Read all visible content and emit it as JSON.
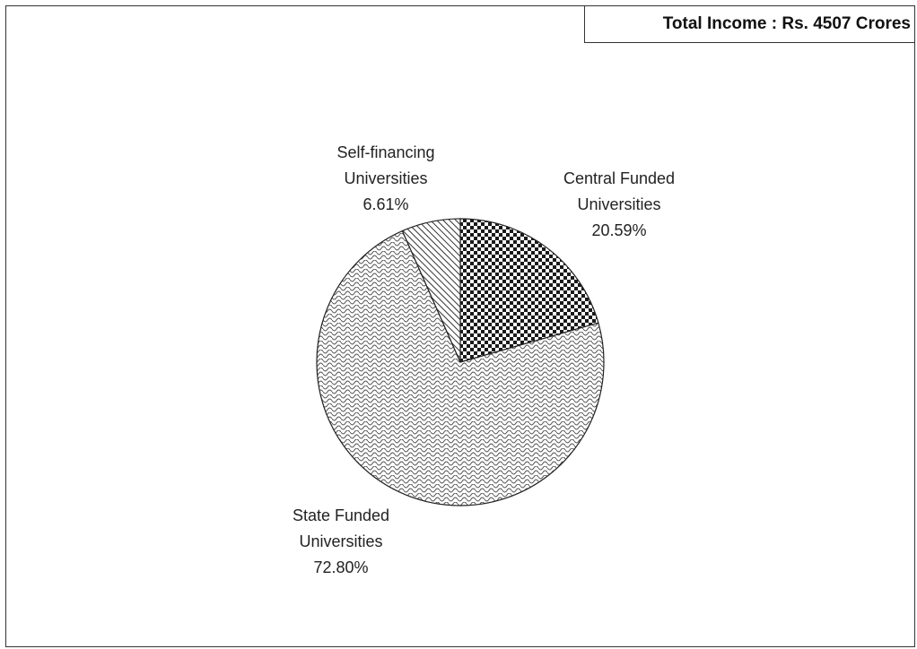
{
  "header": {
    "total_income": "Total Income : Rs. 4507 Crores"
  },
  "chart_data": {
    "type": "pie",
    "slices": [
      {
        "label_lines": [
          "Central Funded",
          "Universities"
        ],
        "percent_label": "20.59%",
        "value": 20.59,
        "pattern": "checker"
      },
      {
        "label_lines": [
          "State Funded",
          "Universities"
        ],
        "percent_label": "72.80%",
        "value": 72.8,
        "pattern": "weave"
      },
      {
        "label_lines": [
          "Self-financing",
          "Universities"
        ],
        "percent_label": "6.61%",
        "value": 6.61,
        "pattern": "diagonal"
      }
    ],
    "legend": "none",
    "start_angle": "12 o'clock",
    "direction": "clockwise"
  }
}
